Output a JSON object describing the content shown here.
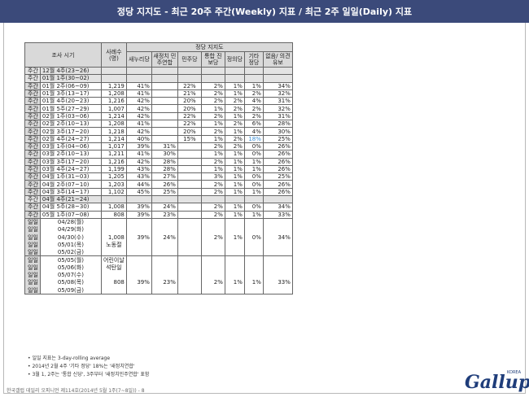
{
  "title": "정당 지지도 - 최근 20주 주간(Weekly) 지표 / 최근 2주 일일(Daily) 지표",
  "head": {
    "period": "조사 시기",
    "samples": "사례수 (명)",
    "group": "정당 지지도",
    "parties": [
      "새누리당",
      "새정치 민주연합",
      "민주당",
      "통합 진보당",
      "정의당",
      "기타 정당",
      "없음/ 의견유보"
    ]
  },
  "weekly": [
    [
      "주간",
      "12월 4주(23~26)",
      "",
      "",
      "",
      "",
      "",
      "",
      "",
      ""
    ],
    [
      "주간",
      "01월 1주(30~02)",
      "",
      "",
      "",
      "",
      "",
      "",
      "",
      ""
    ],
    [
      "주간",
      "01월 2주(06~09)",
      "1,219",
      "41%",
      "",
      "22%",
      "2%",
      "1%",
      "1%",
      "34%"
    ],
    [
      "주간",
      "01월 3주(13~17)",
      "1,208",
      "41%",
      "",
      "21%",
      "2%",
      "1%",
      "2%",
      "32%"
    ],
    [
      "주간",
      "01월 4주(20~23)",
      "1,216",
      "42%",
      "",
      "20%",
      "2%",
      "2%",
      "4%",
      "31%"
    ],
    [
      "주간",
      "01월 5주(27~29)",
      "1,007",
      "42%",
      "",
      "20%",
      "1%",
      "2%",
      "2%",
      "32%"
    ],
    [
      "주간",
      "02월 1주(03~06)",
      "1,214",
      "42%",
      "",
      "22%",
      "2%",
      "1%",
      "2%",
      "31%"
    ],
    [
      "주간",
      "02월 2주(10~13)",
      "1,208",
      "41%",
      "",
      "22%",
      "1%",
      "2%",
      "6%",
      "28%"
    ],
    [
      "주간",
      "02월 3주(17~20)",
      "1,218",
      "42%",
      "",
      "20%",
      "2%",
      "1%",
      "4%",
      "30%"
    ],
    [
      "주간",
      "02월 4주(24~27)",
      "1,214",
      "40%",
      "",
      "15%",
      "1%",
      "2%",
      "+18%",
      "25%"
    ],
    [
      "주간",
      "03월 1주(04~06)",
      "1,017",
      "39%",
      "31%",
      "",
      "2%",
      "2%",
      "0%",
      "26%"
    ],
    [
      "주간",
      "03월 2주(10~13)",
      "1,211",
      "41%",
      "30%",
      "",
      "1%",
      "1%",
      "0%",
      "26%"
    ],
    [
      "주간",
      "03월 3주(17~20)",
      "1,216",
      "42%",
      "28%",
      "",
      "2%",
      "1%",
      "1%",
      "26%"
    ],
    [
      "주간",
      "03월 4주(24~27)",
      "1,199",
      "43%",
      "28%",
      "",
      "1%",
      "1%",
      "1%",
      "26%"
    ],
    [
      "주간",
      "04월 1주(31~03)",
      "1,205",
      "43%",
      "27%",
      "",
      "3%",
      "1%",
      "0%",
      "25%"
    ],
    [
      "주간",
      "04월 2주(07~10)",
      "1,203",
      "44%",
      "26%",
      "",
      "2%",
      "1%",
      "0%",
      "26%"
    ],
    [
      "주간",
      "04월 3주(14~17)",
      "1,102",
      "45%",
      "25%",
      "",
      "2%",
      "1%",
      "1%",
      "26%"
    ],
    [
      "주간",
      "04월 4주(21~24)",
      "",
      "",
      "",
      "",
      "",
      "",
      "",
      ""
    ],
    [
      "주간",
      "04월 5주(28~30)",
      "1,008",
      "39%",
      "24%",
      "",
      "2%",
      "1%",
      "0%",
      "34%"
    ],
    [
      "주간",
      "05월 1주(07~08)",
      "808",
      "39%",
      "23%",
      "",
      "2%",
      "1%",
      "1%",
      "33%"
    ]
  ],
  "daily1": {
    "rows": [
      [
        "일일",
        "04/28(월)"
      ],
      [
        "일일",
        "04/29(화)"
      ],
      [
        "일일",
        "04/30(수)"
      ],
      [
        "일일",
        "05/01(목)"
      ],
      [
        "일일",
        "05/02(금)"
      ]
    ],
    "samples": "1,008",
    "holiday": "노동절",
    "vals": [
      "39%",
      "24%",
      "",
      "2%",
      "1%",
      "0%",
      "34%"
    ]
  },
  "daily2": {
    "rows": [
      [
        "일일",
        "05/05(월)"
      ],
      [
        "일일",
        "05/06(화)"
      ],
      [
        "일일",
        "05/07(수)"
      ],
      [
        "일일",
        "05/08(목)"
      ],
      [
        "일일",
        "05/09(금)"
      ]
    ],
    "samples": "808",
    "holiday1": "어린이날",
    "holiday2": "석탄일",
    "vals": [
      "39%",
      "23%",
      "",
      "2%",
      "1%",
      "1%",
      "33%"
    ]
  },
  "notes": [
    "• 일일 지표는 3-day-rolling average",
    "• 2014년 2월 4주 '기타 정당' 18%는 '새정치연합'",
    "• 3월 1, 2주는 '통합 신당', 3주부터 '새정치민주연합' 표함"
  ],
  "footer": "한국갤럽 데일리 오피니언 제114호(2014년 5월 1주(7~8일)) - 8",
  "logo": {
    "text": "Gallup",
    "sub": "KOREA"
  }
}
